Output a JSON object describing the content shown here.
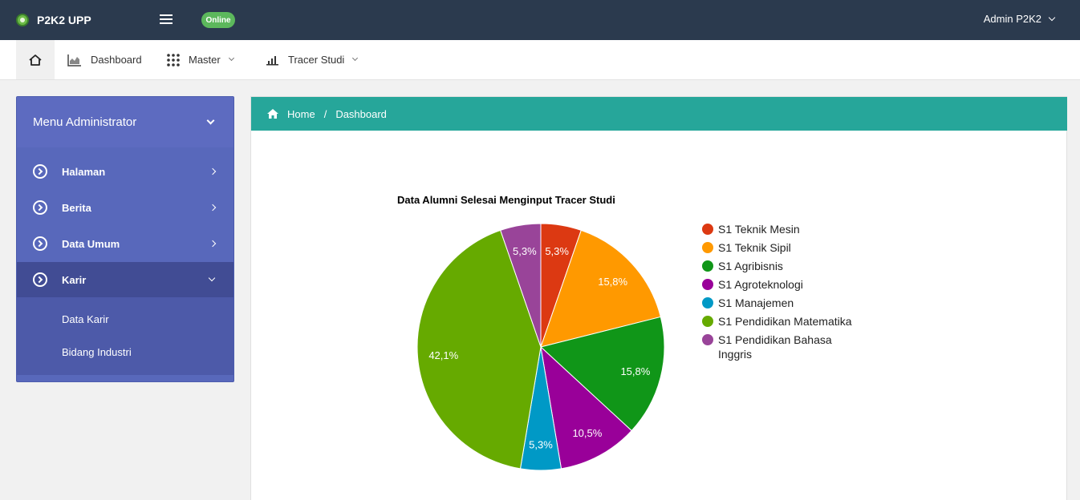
{
  "header": {
    "brand": "P2K2 UPP",
    "status_badge": "Online",
    "user_menu": "Admin P2K2"
  },
  "nav": {
    "dashboard": "Dashboard",
    "master": "Master",
    "tracer": "Tracer Studi"
  },
  "sidebar": {
    "title": "Menu Administrator",
    "items": [
      {
        "label": "Halaman"
      },
      {
        "label": "Berita"
      },
      {
        "label": "Data Umum"
      },
      {
        "label": "Karir"
      }
    ],
    "submenu": [
      {
        "label": "Data Karir"
      },
      {
        "label": "Bidang Industri"
      }
    ]
  },
  "breadcrumb": {
    "home": "Home",
    "separator": "/",
    "current": "Dashboard"
  },
  "chart_data": {
    "type": "pie",
    "title": "Data Alumni Selesai Menginput Tracer Studi",
    "legend_position": "right",
    "slices": [
      {
        "name": "S1 Teknik Mesin",
        "value": 5.3,
        "label": "5,3%",
        "color": "#dc3912"
      },
      {
        "name": "S1 Teknik Sipil",
        "value": 15.8,
        "label": "15,8%",
        "color": "#ff9900"
      },
      {
        "name": "S1 Agribisnis",
        "value": 15.8,
        "label": "15,8%",
        "color": "#109618"
      },
      {
        "name": "S1 Agroteknologi",
        "value": 10.5,
        "label": "10,5%",
        "color": "#990099"
      },
      {
        "name": "S1 Manajemen",
        "value": 5.3,
        "label": "5,3%",
        "color": "#0099c6"
      },
      {
        "name": "S1 Pendidikan Matematika",
        "value": 42.1,
        "label": "42,1%",
        "color": "#66aa00"
      },
      {
        "name": "S1 Pendidikan Bahasa Inggris",
        "value": 5.3,
        "label": "5,3%",
        "color": "#994499"
      }
    ]
  }
}
